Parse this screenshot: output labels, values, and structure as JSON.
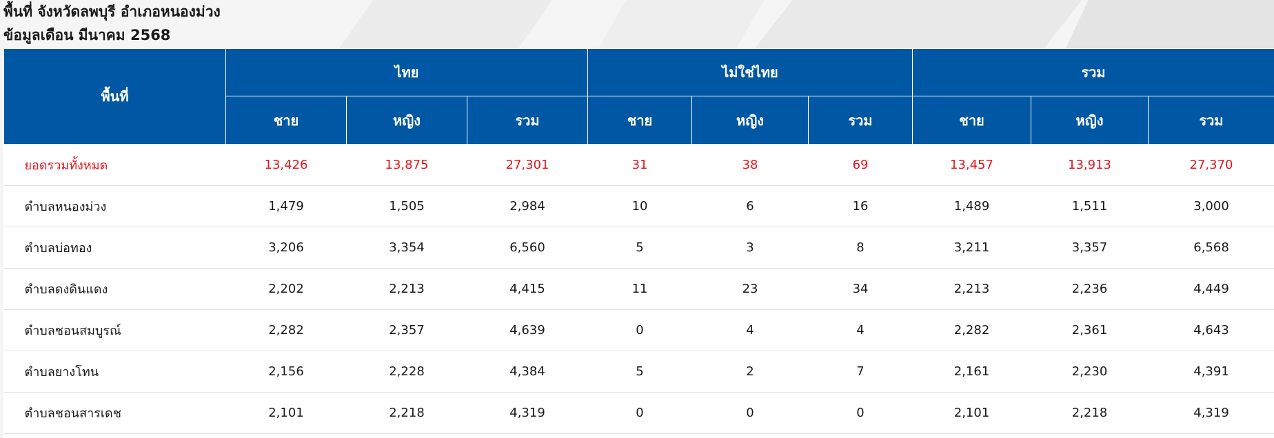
{
  "title_line1": "พื้นที่ จังหวัดลพบุรี อำเภอหนองม่วง",
  "title_line2": "ข้อมูลเดือน มีนาคม 2568",
  "colors": {
    "header_bg": "#0057a3",
    "total_text": "#e8141b"
  },
  "table": {
    "area_header": "พื้นที่",
    "groups": [
      "ไทย",
      "ไม่ใช่ไทย",
      "รวม"
    ],
    "subheaders": [
      "ชาย",
      "หญิง",
      "รวม",
      "ชาย",
      "หญิง",
      "รวม",
      "ชาย",
      "หญิง",
      "รวม"
    ],
    "total_row": {
      "label": "ยอดรวมทั้งหมด",
      "values": [
        "13,426",
        "13,875",
        "27,301",
        "31",
        "38",
        "69",
        "13,457",
        "13,913",
        "27,370"
      ]
    },
    "rows": [
      {
        "label": "ตำบลหนองม่วง",
        "values": [
          "1,479",
          "1,505",
          "2,984",
          "10",
          "6",
          "16",
          "1,489",
          "1,511",
          "3,000"
        ]
      },
      {
        "label": "ตำบลบ่อทอง",
        "values": [
          "3,206",
          "3,354",
          "6,560",
          "5",
          "3",
          "8",
          "3,211",
          "3,357",
          "6,568"
        ]
      },
      {
        "label": "ตำบลดงดินแดง",
        "values": [
          "2,202",
          "2,213",
          "4,415",
          "11",
          "23",
          "34",
          "2,213",
          "2,236",
          "4,449"
        ]
      },
      {
        "label": "ตำบลชอนสมบูรณ์",
        "values": [
          "2,282",
          "2,357",
          "4,639",
          "0",
          "4",
          "4",
          "2,282",
          "2,361",
          "4,643"
        ]
      },
      {
        "label": "ตำบลยางโทน",
        "values": [
          "2,156",
          "2,228",
          "4,384",
          "5",
          "2",
          "7",
          "2,161",
          "2,230",
          "4,391"
        ]
      },
      {
        "label": "ตำบลชอนสารเดช",
        "values": [
          "2,101",
          "2,218",
          "4,319",
          "0",
          "0",
          "0",
          "2,101",
          "2,218",
          "4,319"
        ]
      }
    ]
  }
}
